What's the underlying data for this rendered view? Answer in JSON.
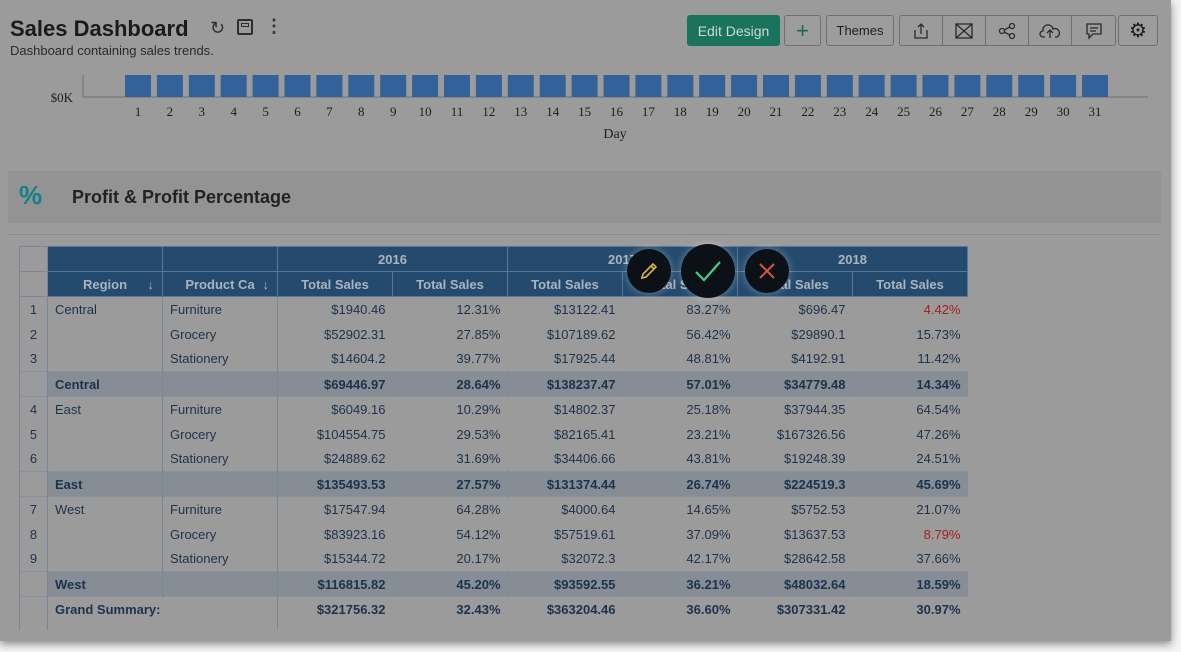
{
  "header": {
    "title": "Sales Dashboard",
    "subtitle": "Dashboard containing sales trends.",
    "edit_design": "Edit Design",
    "add": "+",
    "themes": "Themes"
  },
  "colors": {
    "accent": "#19735d",
    "table_header": "#244b6e",
    "bar": "#33629a",
    "negative": "#a81e1e"
  },
  "chart_data": {
    "type": "bar",
    "xlabel": "Day",
    "ylabel": "",
    "categories": [
      "1",
      "2",
      "3",
      "4",
      "5",
      "6",
      "7",
      "8",
      "9",
      "10",
      "11",
      "12",
      "13",
      "14",
      "15",
      "16",
      "17",
      "18",
      "19",
      "20",
      "21",
      "22",
      "23",
      "24",
      "25",
      "26",
      "27",
      "28",
      "29",
      "30",
      "31"
    ],
    "y_tick_labels": [
      "$0K"
    ]
  },
  "section": {
    "title": "Profit & Profit Percentage",
    "icon": "percent-dollar-icon"
  },
  "table": {
    "years": [
      "2016",
      "2017",
      "2018"
    ],
    "dim_headers": [
      "Region",
      "Product Ca"
    ],
    "measure_header": "Total Sales",
    "rows": [
      {
        "n": "1",
        "region": "Central",
        "cat": "Furniture",
        "v": [
          "$1940.46",
          "12.31%",
          "$13122.41",
          "83.27%",
          "$696.47",
          "4.42%"
        ],
        "red": [
          5
        ]
      },
      {
        "n": "2",
        "region": "",
        "cat": "Grocery",
        "v": [
          "$52902.31",
          "27.85%",
          "$107189.62",
          "56.42%",
          "$29890.1",
          "15.73%"
        ]
      },
      {
        "n": "3",
        "region": "",
        "cat": "Stationery",
        "v": [
          "$14604.2",
          "39.77%",
          "$17925.44",
          "48.81%",
          "$4192.91",
          "11.42%"
        ]
      },
      {
        "sub": true,
        "region": "Central",
        "v": [
          "$69446.97",
          "28.64%",
          "$138237.47",
          "57.01%",
          "$34779.48",
          "14.34%"
        ]
      },
      {
        "n": "4",
        "region": "East",
        "cat": "Furniture",
        "v": [
          "$6049.16",
          "10.29%",
          "$14802.37",
          "25.18%",
          "$37944.35",
          "64.54%"
        ]
      },
      {
        "n": "5",
        "region": "",
        "cat": "Grocery",
        "v": [
          "$104554.75",
          "29.53%",
          "$82165.41",
          "23.21%",
          "$167326.56",
          "47.26%"
        ]
      },
      {
        "n": "6",
        "region": "",
        "cat": "Stationery",
        "v": [
          "$24889.62",
          "31.69%",
          "$34406.66",
          "43.81%",
          "$19248.39",
          "24.51%"
        ]
      },
      {
        "sub": true,
        "region": "East",
        "v": [
          "$135493.53",
          "27.57%",
          "$131374.44",
          "26.74%",
          "$224519.3",
          "45.69%"
        ]
      },
      {
        "n": "7",
        "region": "West",
        "cat": "Furniture",
        "v": [
          "$17547.94",
          "64.28%",
          "$4000.64",
          "14.65%",
          "$5752.53",
          "21.07%"
        ]
      },
      {
        "n": "8",
        "region": "",
        "cat": "Grocery",
        "v": [
          "$83923.16",
          "54.12%",
          "$57519.61",
          "37.09%",
          "$13637.53",
          "8.79%"
        ],
        "red": [
          5
        ]
      },
      {
        "n": "9",
        "region": "",
        "cat": "Stationery",
        "v": [
          "$15344.72",
          "20.17%",
          "$32072.3",
          "42.17%",
          "$28642.58",
          "37.66%"
        ]
      },
      {
        "sub": true,
        "region": "West",
        "v": [
          "$116815.82",
          "45.20%",
          "$93592.55",
          "36.21%",
          "$48032.64",
          "18.59%"
        ]
      },
      {
        "grand": true,
        "region": "Grand Summary:",
        "v": [
          "$321756.32",
          "32.43%",
          "$363204.46",
          "36.60%",
          "$307331.42",
          "30.97%"
        ]
      }
    ]
  }
}
